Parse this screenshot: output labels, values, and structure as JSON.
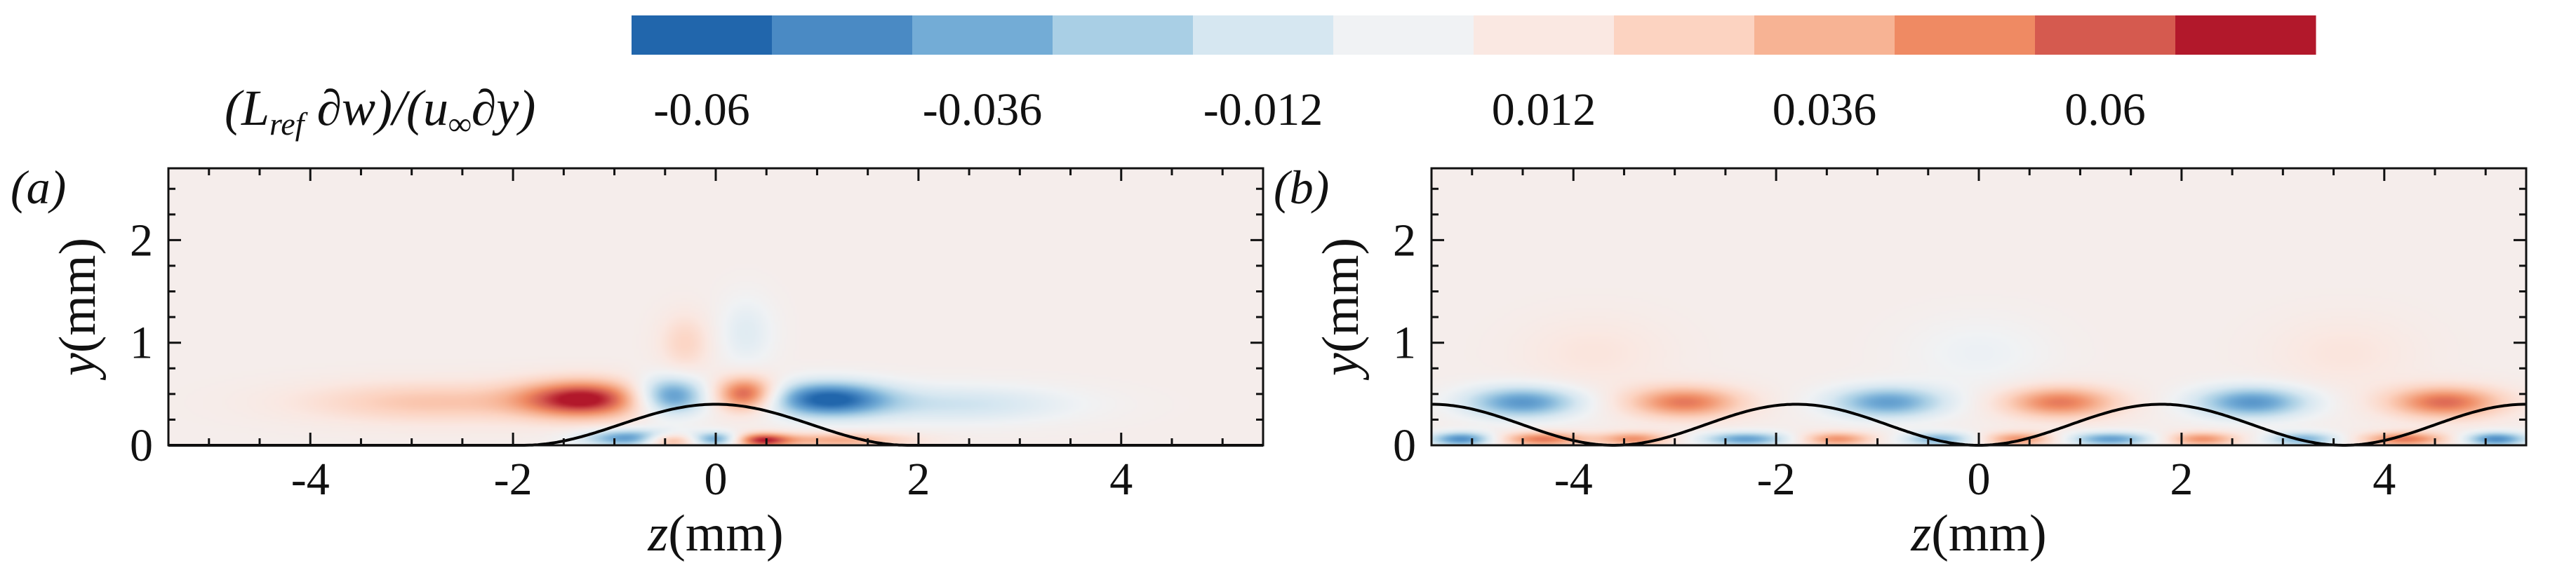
{
  "colorbar": {
    "label_prefix": "(L",
    "label_sub": "ref",
    "label_suffix": " ∂w)/(u",
    "label_sub2": "∞",
    "label_suffix2": "∂y)",
    "ticks": [
      "-0.06",
      "-0.036",
      "-0.012",
      "0.012",
      "0.036",
      "0.06"
    ],
    "colors": [
      "#2166ac",
      "#4a8ac4",
      "#73acd6",
      "#a9cfe5",
      "#d6e7f1",
      "#f0f2f4",
      "#fae8e2",
      "#fcd3c1",
      "#f7b394",
      "#ef8a63",
      "#d55a4f",
      "#b2182b"
    ]
  },
  "chart_data": [
    {
      "type": "heatmap",
      "panel_label": "(a)",
      "xlabel_var": "z",
      "xlabel_unit": "(mm)",
      "ylabel_var": "y",
      "ylabel_unit": "(mm)",
      "xlim": [
        -5.4,
        5.4
      ],
      "ylim": [
        0,
        2.7
      ],
      "xticks": [
        "-4",
        "-2",
        "0",
        "2",
        "4"
      ],
      "yticks": [
        "0",
        "1",
        "2"
      ],
      "structures": [
        {
          "z": -1.3,
          "y": 0.45,
          "sign": 1,
          "amp": 1.0,
          "sz": 0.45,
          "sy": 0.13
        },
        {
          "z": -2.8,
          "y": 0.42,
          "sign": 1,
          "amp": 0.35,
          "sz": 0.9,
          "sy": 0.14
        },
        {
          "z": -0.8,
          "y": 0.07,
          "sign": -1,
          "amp": 0.8,
          "sz": 0.35,
          "sy": 0.06
        },
        {
          "z": -0.45,
          "y": 0.48,
          "sign": -1,
          "amp": 0.85,
          "sz": 0.25,
          "sy": 0.13
        },
        {
          "z": 0.3,
          "y": 0.5,
          "sign": 1,
          "amp": 0.9,
          "sz": 0.22,
          "sy": 0.12
        },
        {
          "z": 1.1,
          "y": 0.45,
          "sign": -1,
          "amp": 1.0,
          "sz": 0.42,
          "sy": 0.12
        },
        {
          "z": 2.4,
          "y": 0.4,
          "sign": -1,
          "amp": 0.3,
          "sz": 0.8,
          "sy": 0.13
        },
        {
          "z": -0.45,
          "y": 0.05,
          "sign": 1,
          "amp": 0.8,
          "sz": 0.2,
          "sy": 0.05
        },
        {
          "z": 0.0,
          "y": 0.06,
          "sign": -1,
          "amp": 0.7,
          "sz": 0.18,
          "sy": 0.05
        },
        {
          "z": 0.45,
          "y": 0.05,
          "sign": 1,
          "amp": 0.85,
          "sz": 0.2,
          "sy": 0.05
        },
        {
          "z": 1.2,
          "y": 0.05,
          "sign": 1,
          "amp": 0.5,
          "sz": 0.5,
          "sy": 0.05
        },
        {
          "z": -0.3,
          "y": 1.0,
          "sign": 1,
          "amp": 0.25,
          "sz": 0.18,
          "sy": 0.2
        },
        {
          "z": 0.3,
          "y": 1.1,
          "sign": -1,
          "amp": 0.2,
          "sz": 0.2,
          "sy": 0.25
        }
      ],
      "curve": {
        "type": "bump",
        "center": 0,
        "halfwidth": 1.9,
        "height": 0.4
      }
    },
    {
      "type": "heatmap",
      "panel_label": "(b)",
      "xlabel_var": "z",
      "xlabel_unit": "(mm)",
      "ylabel_var": "y",
      "ylabel_unit": "(mm)",
      "xlim": [
        -5.4,
        5.4
      ],
      "ylim": [
        0,
        2.7
      ],
      "xticks": [
        "-4",
        "-2",
        "0",
        "2",
        "4"
      ],
      "yticks": [
        "0",
        "1",
        "2"
      ],
      "structures": [
        {
          "z": -4.5,
          "y": 0.42,
          "sign": -1,
          "amp": 0.75,
          "sz": 0.4,
          "sy": 0.11
        },
        {
          "z": -2.9,
          "y": 0.42,
          "sign": 1,
          "amp": 0.7,
          "sz": 0.4,
          "sy": 0.11
        },
        {
          "z": -0.9,
          "y": 0.42,
          "sign": -1,
          "amp": 0.7,
          "sz": 0.4,
          "sy": 0.11
        },
        {
          "z": 0.8,
          "y": 0.42,
          "sign": 1,
          "amp": 0.7,
          "sz": 0.4,
          "sy": 0.11
        },
        {
          "z": 2.7,
          "y": 0.42,
          "sign": -1,
          "amp": 0.75,
          "sz": 0.4,
          "sy": 0.11
        },
        {
          "z": 4.6,
          "y": 0.42,
          "sign": 1,
          "amp": 0.75,
          "sz": 0.4,
          "sy": 0.11
        },
        {
          "z": -5.1,
          "y": 0.06,
          "sign": -1,
          "amp": 0.8,
          "sz": 0.22,
          "sy": 0.05
        },
        {
          "z": -4.3,
          "y": 0.06,
          "sign": 1,
          "amp": 0.7,
          "sz": 0.3,
          "sy": 0.05
        },
        {
          "z": -3.4,
          "y": 0.06,
          "sign": 1,
          "amp": 0.6,
          "sz": 0.25,
          "sy": 0.05
        },
        {
          "z": -2.3,
          "y": 0.06,
          "sign": -1,
          "amp": 0.7,
          "sz": 0.3,
          "sy": 0.05
        },
        {
          "z": -1.4,
          "y": 0.06,
          "sign": 1,
          "amp": 0.6,
          "sz": 0.25,
          "sy": 0.05
        },
        {
          "z": -0.4,
          "y": 0.06,
          "sign": -1,
          "amp": 0.6,
          "sz": 0.25,
          "sy": 0.05
        },
        {
          "z": 0.4,
          "y": 0.06,
          "sign": 1,
          "amp": 0.6,
          "sz": 0.25,
          "sy": 0.05
        },
        {
          "z": 1.3,
          "y": 0.06,
          "sign": -1,
          "amp": 0.7,
          "sz": 0.3,
          "sy": 0.05
        },
        {
          "z": 2.2,
          "y": 0.06,
          "sign": 1,
          "amp": 0.6,
          "sz": 0.25,
          "sy": 0.05
        },
        {
          "z": 3.2,
          "y": 0.06,
          "sign": -1,
          "amp": 0.6,
          "sz": 0.25,
          "sy": 0.05
        },
        {
          "z": 4.2,
          "y": 0.06,
          "sign": 1,
          "amp": 0.7,
          "sz": 0.3,
          "sy": 0.05
        },
        {
          "z": 5.1,
          "y": 0.06,
          "sign": -1,
          "amp": 0.8,
          "sz": 0.22,
          "sy": 0.05
        },
        {
          "z": -3.8,
          "y": 0.9,
          "sign": 1,
          "amp": 0.12,
          "sz": 0.5,
          "sy": 0.25
        },
        {
          "z": 0.0,
          "y": 0.9,
          "sign": -1,
          "amp": 0.12,
          "sz": 0.5,
          "sy": 0.25
        },
        {
          "z": 3.6,
          "y": 0.9,
          "sign": 1,
          "amp": 0.12,
          "sz": 0.5,
          "sy": 0.25
        }
      ],
      "curve": {
        "type": "periodic",
        "period": 3.6,
        "height": 0.4,
        "phase_peak": -1.8
      }
    }
  ]
}
